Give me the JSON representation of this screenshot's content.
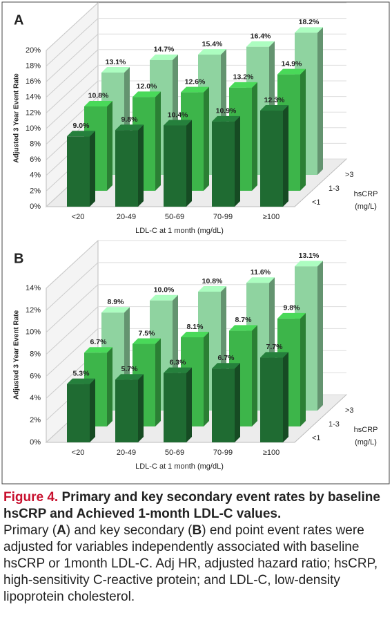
{
  "chart_data": [
    {
      "type": "bar",
      "panel": "A",
      "ylabel": "Adjusted 3 Year Event Rate",
      "xlabel": "LDL-C at 1 month (mg/dL)",
      "depth_label": [
        "hsCRP",
        "(mg/L)"
      ],
      "categories": [
        "<20",
        "20-49",
        "50-69",
        "70-99",
        "≥100"
      ],
      "series": [
        {
          "name": "<1",
          "color": "#1f6b32",
          "values": [
            9.0,
            9.8,
            10.4,
            10.9,
            12.3
          ],
          "value_labels": [
            "9.0%",
            "9.8%",
            "10.4%",
            "10.9%",
            "12.3%"
          ]
        },
        {
          "name": "1-3",
          "color": "#3db54a",
          "values": [
            10.8,
            12.0,
            12.6,
            13.2,
            14.9
          ],
          "value_labels": [
            "10.8%",
            "12.0%",
            "12.6%",
            "13.2%",
            "14.9%"
          ]
        },
        {
          "name": ">3",
          "color": "#8fd3a0",
          "values": [
            13.1,
            14.7,
            15.4,
            16.4,
            18.2
          ],
          "value_labels": [
            "13.1%",
            "14.7%",
            "15.4%",
            "16.4%",
            "18.2%"
          ]
        }
      ],
      "ylim": [
        0,
        20
      ],
      "yticks": [
        {
          "value": 0,
          "label": "0%"
        },
        {
          "value": 2,
          "label": "2%"
        },
        {
          "value": 4,
          "label": "4%"
        },
        {
          "value": 6,
          "label": "6%"
        },
        {
          "value": 8,
          "label": "8%"
        },
        {
          "value": 10,
          "label": "10%"
        },
        {
          "value": 12,
          "label": "12%"
        },
        {
          "value": 14,
          "label": "14%"
        },
        {
          "value": 16,
          "label": "16%"
        },
        {
          "value": 18,
          "label": "18%"
        },
        {
          "value": 20,
          "label": "20%"
        }
      ],
      "grid": true
    },
    {
      "type": "bar",
      "panel": "B",
      "ylabel": "Adjusted 3 Year Event Rate",
      "xlabel": "LDL-C at 1 month (mg/dL)",
      "depth_label": [
        "hsCRP",
        "(mg/L)"
      ],
      "categories": [
        "<20",
        "20-49",
        "50-69",
        "70-99",
        "≥100"
      ],
      "series": [
        {
          "name": "<1",
          "color": "#1f6b32",
          "values": [
            5.3,
            5.7,
            6.3,
            6.7,
            7.7
          ],
          "value_labels": [
            "5.3%",
            "5.7%",
            "6.3%",
            "6.7%",
            "7.7%"
          ]
        },
        {
          "name": "1-3",
          "color": "#3db54a",
          "values": [
            6.7,
            7.5,
            8.1,
            8.7,
            9.8
          ],
          "value_labels": [
            "6.7%",
            "7.5%",
            "8.1%",
            "8.7%",
            "9.8%"
          ]
        },
        {
          "name": ">3",
          "color": "#8fd3a0",
          "values": [
            8.9,
            10.0,
            10.8,
            11.6,
            13.1
          ],
          "value_labels": [
            "8.9%",
            "10.0%",
            "10.8%",
            "11.6%",
            "13.1%"
          ]
        }
      ],
      "ylim": [
        0,
        14
      ],
      "yticks": [
        {
          "value": 0,
          "label": "0%"
        },
        {
          "value": 2,
          "label": "2%"
        },
        {
          "value": 4,
          "label": "4%"
        },
        {
          "value": 6,
          "label": "6%"
        },
        {
          "value": 8,
          "label": "8%"
        },
        {
          "value": 10,
          "label": "10%"
        },
        {
          "value": 12,
          "label": "12%"
        },
        {
          "value": 14,
          "label": "14%"
        }
      ],
      "grid": true
    }
  ],
  "caption": {
    "label": "Figure 4.",
    "title": "Primary and key secondary event rates by baseline hsCRP and Achieved 1-month LDL-C values.",
    "body": [
      "Primary (",
      "A",
      ") and key secondary (",
      "B",
      ") end point event rates were adjusted for variables independently associated with baseline hsCRP or 1month LDL-C. Adj HR, adjusted hazard ratio; hsCRP, high-sensitivity C-reactive protein; and LDL-C, low-density lipoprotein cholesterol."
    ]
  }
}
